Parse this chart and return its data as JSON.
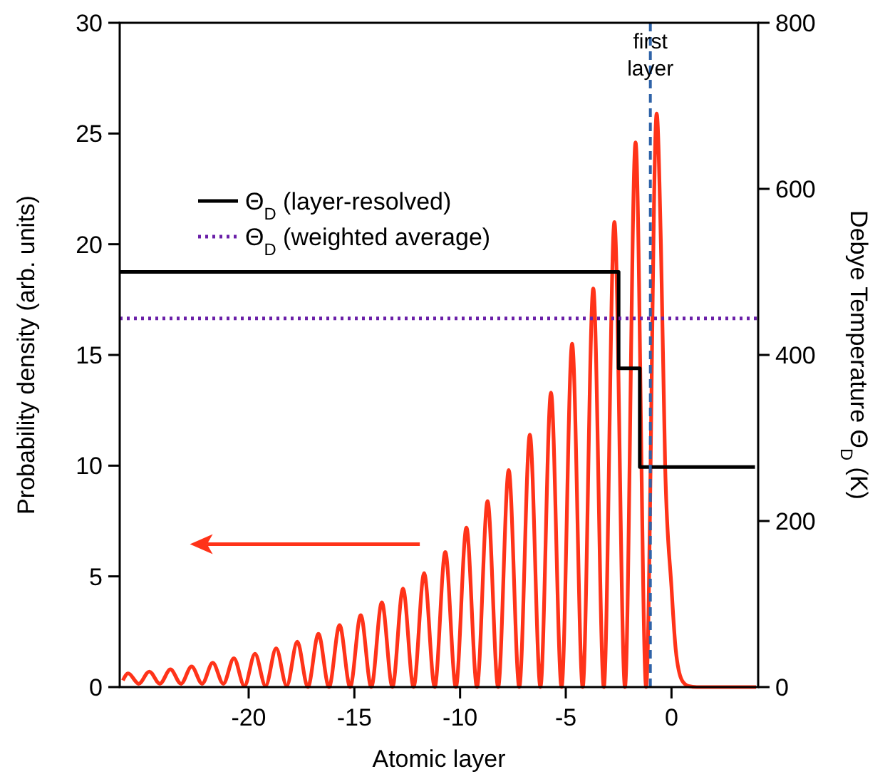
{
  "chart_data": {
    "type": "line",
    "xlabel": "Atomic layer",
    "ylabel": "Probability density (arb. units)",
    "y2label": "Debye Temperature Θ$_{D}$ (K)",
    "xlim": [
      -26.1,
      4.1
    ],
    "xticks": [
      -20,
      -15,
      -10,
      -5,
      0
    ],
    "ylim": [
      0,
      30
    ],
    "yticks": [
      0,
      5,
      10,
      15,
      20,
      25,
      30
    ],
    "y2lim": [
      0,
      800
    ],
    "y2ticks": [
      0,
      200,
      400,
      600,
      800
    ],
    "grid": false,
    "legend": "top left",
    "series": [
      {
        "color": "#ff3319",
        "line_style": "solid",
        "x": [
          -25.95,
          -25.7,
          -25.2,
          -24.7,
          -24.2,
          -23.7,
          -23.2,
          -22.7,
          -22.2,
          -21.7,
          -21.2,
          -20.7,
          -20.2,
          -19.7,
          -19.2,
          -18.7,
          -18.2,
          -17.7,
          -17.2,
          -16.7,
          -16.2,
          -15.7,
          -15.2,
          -14.7,
          -14.2,
          -13.7,
          -13.2,
          -12.7,
          -12.2,
          -11.7,
          -11.2,
          -10.7,
          -10.2,
          -9.7,
          -9.2,
          -8.7,
          -8.2,
          -7.7,
          -7.2,
          -6.7,
          -6.2,
          -5.7,
          -5.2,
          -4.7,
          -4.2,
          -3.7,
          -3.2,
          -2.7,
          -2.2,
          -1.7,
          -1.2,
          -0.7,
          -0.5,
          -0.3,
          0,
          0.2,
          0.5,
          0.8,
          1.2,
          4.0
        ],
        "values": [
          0.3,
          0.62,
          0.15,
          0.7,
          0.15,
          0.8,
          0.15,
          0.93,
          0.15,
          1.1,
          0.15,
          1.3,
          0.05,
          1.5,
          0.05,
          1.75,
          0.05,
          2.05,
          0,
          2.4,
          0,
          2.8,
          0,
          3.25,
          0,
          3.83,
          0,
          4.45,
          0,
          5.15,
          0,
          6.1,
          0,
          7.2,
          0,
          8.4,
          0,
          9.8,
          0,
          11.4,
          0,
          13.3,
          0,
          15.5,
          0,
          18.0,
          0,
          21.0,
          0,
          24.6,
          0,
          25.9,
          20,
          10,
          4.5,
          1.7,
          0.3,
          0.05,
          0,
          0
        ]
      },
      {
        "type": "step",
        "name": "Θ$_{D}$  (layer-resolved)",
        "color": "#000000",
        "line_style": "solid",
        "axis": "y2",
        "x": [
          -26.1,
          -2.5,
          -1.5,
          3.95
        ],
        "values": [
          500,
          384,
          265,
          265
        ]
      },
      {
        "type": "line",
        "name": "Θ$_{D}$  (weighted average)",
        "color": "#6a1fa8",
        "line_style": "dotted",
        "axis": "y2",
        "x": [
          -26.1,
          4.1
        ],
        "values": [
          444,
          444
        ]
      }
    ],
    "ref_lines": [
      {
        "axis": "x",
        "value": -1,
        "label": "first layer",
        "color": "#2f63a8",
        "line_style": "dashed"
      }
    ]
  }
}
